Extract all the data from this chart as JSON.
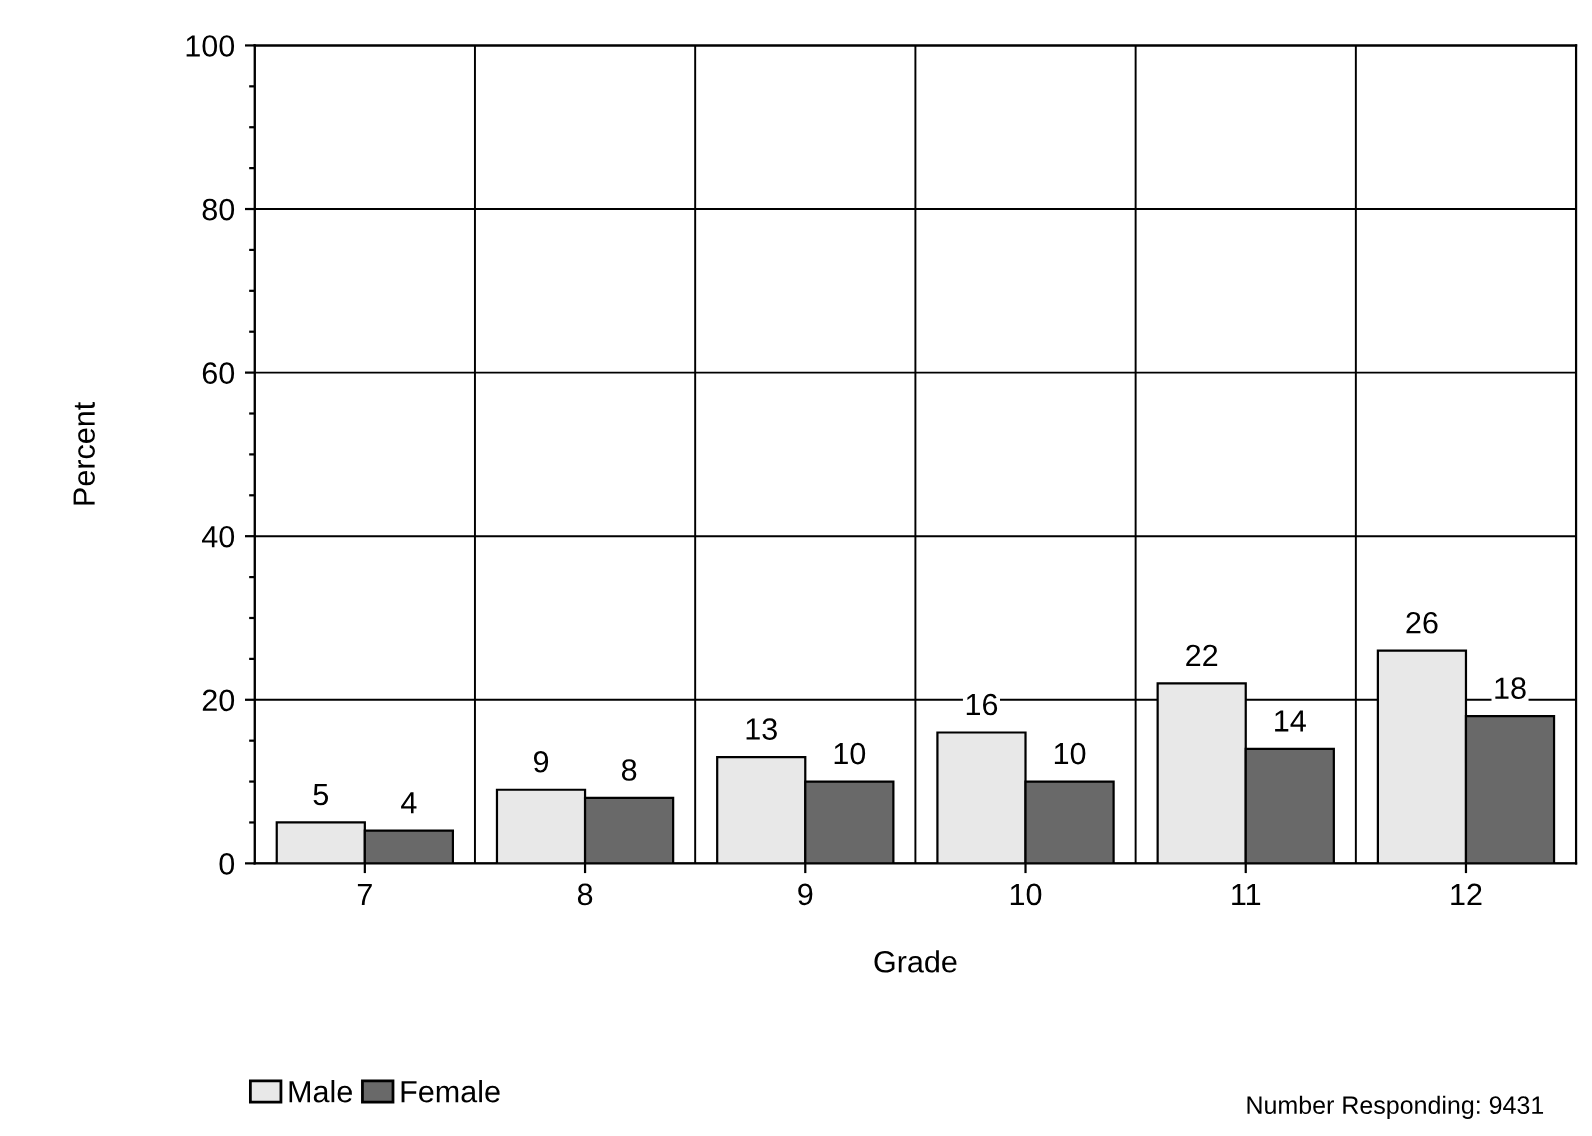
{
  "chart_data": {
    "type": "bar",
    "xlabel": "Grade",
    "ylabel": "Percent",
    "categories": [
      "7",
      "8",
      "9",
      "10",
      "11",
      "12"
    ],
    "series": [
      {
        "name": "Male",
        "color": "#e8e8e8",
        "values": [
          5,
          9,
          13,
          16,
          22,
          26
        ]
      },
      {
        "name": "Female",
        "color": "#696969",
        "values": [
          4,
          8,
          10,
          10,
          14,
          18
        ]
      }
    ],
    "ylim": [
      0,
      100
    ],
    "yticks": [
      0,
      {
        "value": 5,
        "label": null
      },
      {
        "value": 10,
        "label": null
      },
      {
        "value": 15,
        "label": null
      },
      20,
      {
        "value": 25,
        "label": null
      },
      {
        "value": 30,
        "label": null
      },
      {
        "value": 35,
        "label": null
      },
      40,
      {
        "value": 45,
        "label": null
      },
      {
        "value": 50,
        "label": null
      },
      {
        "value": 55,
        "label": null
      },
      60,
      {
        "value": 65,
        "label": null
      },
      {
        "value": 70,
        "label": null
      },
      {
        "value": 75,
        "label": null
      },
      80,
      {
        "value": 85,
        "label": null
      },
      {
        "value": 90,
        "label": null
      },
      {
        "value": 95,
        "label": null
      },
      100
    ],
    "grid": true,
    "legend": "bottom left",
    "data_labels": true,
    "annotations": [
      "Number Responding: 9431"
    ]
  }
}
